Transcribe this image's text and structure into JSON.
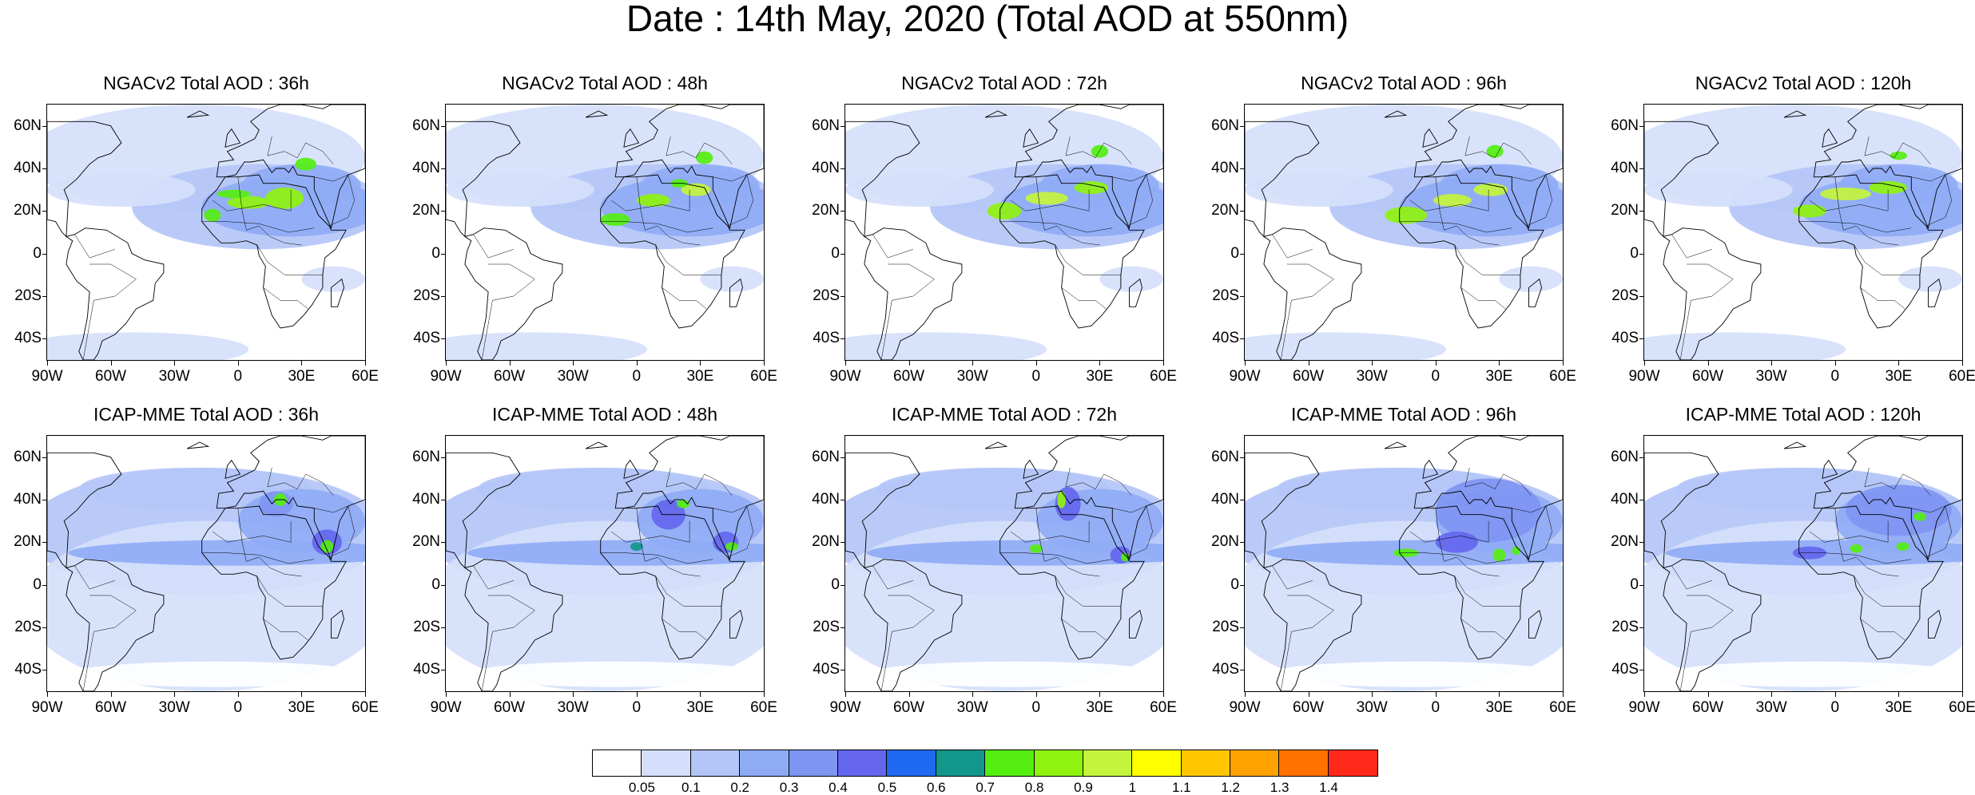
{
  "title": "Date : 14th May, 2020 (Total AOD at 550nm)",
  "panels": [
    {
      "title": "NGACv2 Total AOD : 36h",
      "model": "NGACv2",
      "lead": "36h"
    },
    {
      "title": "NGACv2 Total AOD : 48h",
      "model": "NGACv2",
      "lead": "48h"
    },
    {
      "title": "NGACv2 Total AOD : 72h",
      "model": "NGACv2",
      "lead": "72h"
    },
    {
      "title": "NGACv2 Total AOD : 96h",
      "model": "NGACv2",
      "lead": "96h"
    },
    {
      "title": "NGACv2 Total AOD : 120h",
      "model": "NGACv2",
      "lead": "120h"
    },
    {
      "title": "ICAP-MME Total AOD : 36h",
      "model": "ICAP-MME",
      "lead": "36h"
    },
    {
      "title": "ICAP-MME Total AOD : 48h",
      "model": "ICAP-MME",
      "lead": "48h"
    },
    {
      "title": "ICAP-MME Total AOD : 72h",
      "model": "ICAP-MME",
      "lead": "72h"
    },
    {
      "title": "ICAP-MME Total AOD : 96h",
      "model": "ICAP-MME",
      "lead": "96h"
    },
    {
      "title": "ICAP-MME Total AOD : 120h",
      "model": "ICAP-MME",
      "lead": "120h"
    }
  ],
  "lat_labels": [
    "60N",
    "40N",
    "20N",
    "0",
    "20S",
    "40S"
  ],
  "lon_labels": [
    "90W",
    "60W",
    "30W",
    "0",
    "30E",
    "60E"
  ],
  "colorbar": {
    "colors": [
      "#ffffff",
      "#d5dffb",
      "#b4c6f7",
      "#8fabf5",
      "#7f95f2",
      "#6466ee",
      "#1f6af0",
      "#13968c",
      "#55ee11",
      "#8ff20f",
      "#c4f43c",
      "#ffff00",
      "#ffc600",
      "#ffa200",
      "#ff7200",
      "#ff2a1a"
    ],
    "labels": [
      "0.05",
      "0.1",
      "0.2",
      "0.3",
      "0.4",
      "0.5",
      "0.6",
      "0.7",
      "0.8",
      "0.9",
      "1",
      "1.1",
      "1.2",
      "1.3",
      "1.4"
    ]
  }
}
